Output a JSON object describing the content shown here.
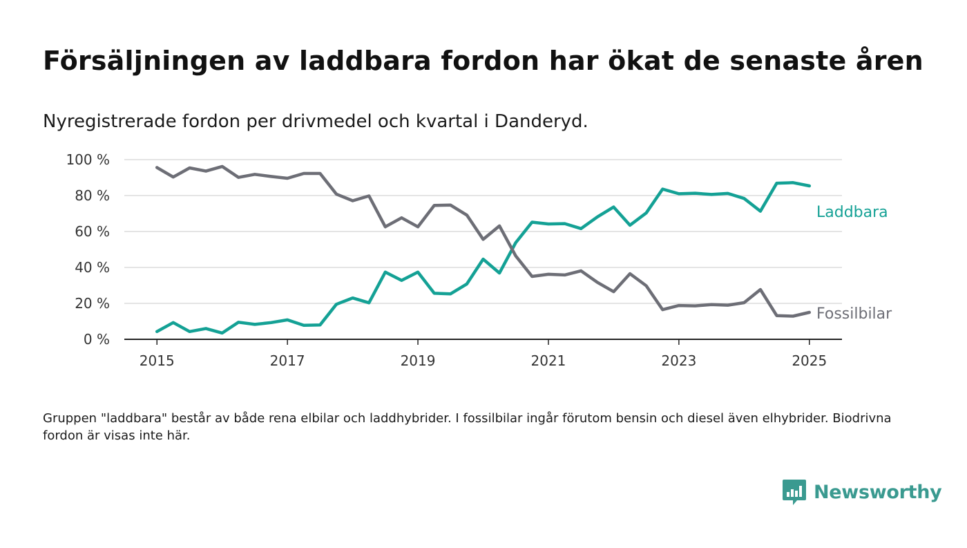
{
  "header": {
    "title": "Försäljningen av laddbara fordon har ökat de senaste åren",
    "subtitle": "Nyregistrerade fordon per drivmedel och kvartal i Danderyd."
  },
  "footer": {
    "note": "Gruppen \"laddbara\" består av både rena elbilar och laddhybrider. I fossilbilar ingår förutom bensin och diesel även elhybrider. Biodrivna fordon är visas inte här.",
    "brand": "Newsworthy",
    "brand_icon": "newsworthy-logo-icon",
    "brand_color": "#3a9a90"
  },
  "chart_data": {
    "type": "line",
    "xlim": [
      2014.5,
      2025.5
    ],
    "ylim": [
      0,
      100
    ],
    "x_ticks": [
      2015,
      2017,
      2019,
      2021,
      2023,
      2025
    ],
    "x_tick_labels": [
      "2015",
      "2017",
      "2019",
      "2021",
      "2023",
      "2025"
    ],
    "y_ticks": [
      0,
      20,
      40,
      60,
      80,
      100
    ],
    "y_tick_labels": [
      "0 %",
      "20 %",
      "40 %",
      "60 %",
      "80 %",
      "100 %"
    ],
    "grid": true,
    "legend": "inline labels at line ends",
    "x": [
      2015.0,
      2015.25,
      2015.5,
      2015.75,
      2016.0,
      2016.25,
      2016.5,
      2016.75,
      2017.0,
      2017.25,
      2017.5,
      2017.75,
      2018.0,
      2018.25,
      2018.5,
      2018.75,
      2019.0,
      2019.25,
      2019.5,
      2019.75,
      2020.0,
      2020.25,
      2020.5,
      2020.75,
      2021.0,
      2021.25,
      2021.5,
      2021.75,
      2022.0,
      2022.25,
      2022.5,
      2022.75,
      2023.0,
      2023.25,
      2023.5,
      2023.75,
      2024.0,
      2024.25,
      2024.5,
      2024.75,
      2025.0
    ],
    "series": [
      {
        "name": "Laddbara",
        "color": "#14a195",
        "values": [
          4.3,
          9.3,
          4.3,
          6.0,
          3.5,
          9.5,
          8.3,
          9.3,
          10.8,
          7.8,
          8.0,
          19.5,
          23.0,
          20.3,
          37.4,
          32.8,
          37.4,
          25.6,
          25.3,
          30.8,
          44.6,
          36.9,
          53.8,
          65.2,
          64.2,
          64.4,
          61.6,
          68.1,
          73.6,
          63.5,
          70.3,
          83.6,
          81.0,
          81.3,
          80.6,
          81.2,
          78.4,
          71.3,
          86.9,
          87.2,
          85.4
        ]
      },
      {
        "name": "Fossilbilar",
        "color": "#6d6e76",
        "values": [
          95.6,
          90.3,
          95.4,
          93.6,
          96.2,
          90.1,
          91.8,
          90.6,
          89.6,
          92.3,
          92.3,
          80.8,
          77.1,
          79.8,
          62.6,
          67.6,
          62.6,
          74.5,
          74.7,
          69.1,
          55.6,
          63.1,
          46.4,
          35.0,
          36.2,
          35.8,
          38.1,
          31.7,
          26.5,
          36.5,
          29.8,
          16.5,
          18.8,
          18.6,
          19.3,
          19.0,
          20.4,
          27.7,
          13.2,
          12.9,
          15.0
        ]
      }
    ]
  }
}
